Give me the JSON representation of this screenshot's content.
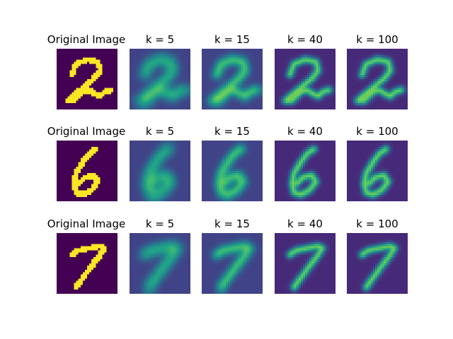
{
  "figure": {
    "colormap": "viridis",
    "rows": [
      {
        "digit": "2",
        "panels": [
          {
            "title": "Original Image",
            "kind": "original"
          },
          {
            "title": "k = 5",
            "kind": "reconstruction",
            "k": 5
          },
          {
            "title": "k = 15",
            "kind": "reconstruction",
            "k": 15
          },
          {
            "title": "k = 40",
            "kind": "reconstruction",
            "k": 40
          },
          {
            "title": "k = 100",
            "kind": "reconstruction",
            "k": 100
          }
        ]
      },
      {
        "digit": "6",
        "panels": [
          {
            "title": "Original Image",
            "kind": "original"
          },
          {
            "title": "k = 5",
            "kind": "reconstruction",
            "k": 5
          },
          {
            "title": "k = 15",
            "kind": "reconstruction",
            "k": 15
          },
          {
            "title": "k = 40",
            "kind": "reconstruction",
            "k": 40
          },
          {
            "title": "k = 100",
            "kind": "reconstruction",
            "k": 100
          }
        ]
      },
      {
        "digit": "7",
        "panels": [
          {
            "title": "Original Image",
            "kind": "original"
          },
          {
            "title": "k = 5",
            "kind": "reconstruction",
            "k": 5
          },
          {
            "title": "k = 15",
            "kind": "reconstruction",
            "k": 15
          },
          {
            "title": "k = 40",
            "kind": "reconstruction",
            "k": 40
          },
          {
            "title": "k = 100",
            "kind": "reconstruction",
            "k": 100
          }
        ]
      }
    ]
  }
}
